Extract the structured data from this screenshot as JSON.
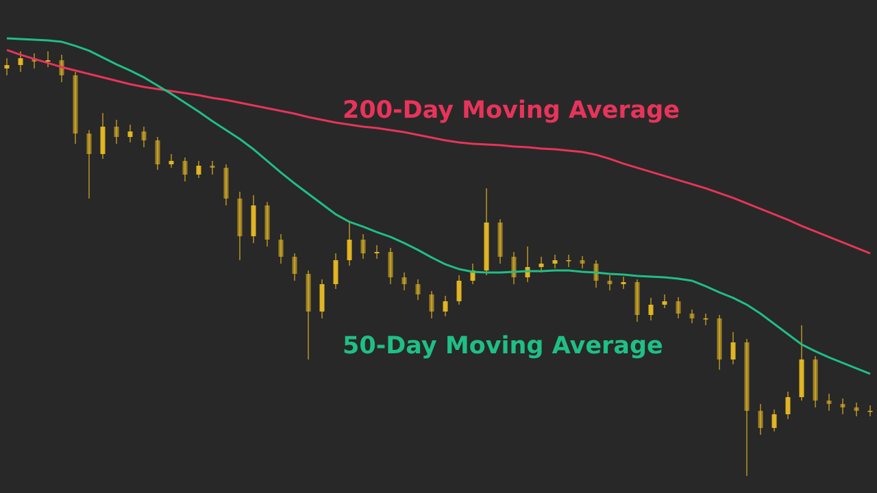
{
  "chart_data": {
    "type": "candlestick",
    "ylim": [
      0,
      720
    ],
    "color": "#e8b923",
    "open": [
      620,
      625,
      635,
      630,
      632,
      610,
      525,
      495,
      535,
      520,
      528,
      515,
      480,
      485,
      465,
      478,
      475,
      430,
      375,
      420,
      370,
      345,
      320,
      265,
      305,
      340,
      370,
      350,
      352,
      315,
      305,
      290,
      265,
      280,
      310,
      325,
      395,
      345,
      315,
      330,
      335,
      340,
      340,
      335,
      310,
      305,
      308,
      260,
      275,
      280,
      262,
      255,
      255,
      195,
      220,
      120,
      95,
      115,
      140,
      195,
      135,
      130,
      125,
      120
    ],
    "high": [
      635,
      645,
      642,
      645,
      640,
      615,
      530,
      555,
      545,
      538,
      535,
      520,
      495,
      490,
      485,
      485,
      480,
      440,
      435,
      425,
      378,
      350,
      325,
      312,
      350,
      395,
      378,
      362,
      358,
      322,
      312,
      295,
      288,
      318,
      335,
      445,
      400,
      352,
      360,
      345,
      348,
      348,
      346,
      340,
      318,
      316,
      312,
      285,
      290,
      286,
      268,
      262,
      260,
      235,
      225,
      130,
      122,
      148,
      245,
      200,
      145,
      138,
      132,
      128
    ],
    "low": [
      610,
      615,
      620,
      622,
      600,
      510,
      430,
      488,
      510,
      512,
      505,
      472,
      475,
      455,
      460,
      465,
      420,
      340,
      365,
      360,
      335,
      310,
      195,
      255,
      298,
      332,
      342,
      342,
      305,
      296,
      282,
      255,
      258,
      275,
      305,
      318,
      335,
      305,
      308,
      322,
      328,
      330,
      328,
      300,
      296,
      298,
      250,
      252,
      270,
      255,
      248,
      245,
      180,
      188,
      25,
      85,
      90,
      108,
      135,
      125,
      120,
      115,
      112,
      112
    ],
    "close": [
      625,
      635,
      630,
      632,
      610,
      525,
      495,
      535,
      520,
      528,
      515,
      480,
      485,
      465,
      478,
      475,
      430,
      375,
      420,
      370,
      345,
      320,
      265,
      305,
      340,
      370,
      350,
      352,
      315,
      305,
      290,
      265,
      280,
      310,
      325,
      395,
      345,
      315,
      330,
      335,
      340,
      340,
      335,
      310,
      305,
      308,
      260,
      275,
      280,
      262,
      255,
      255,
      195,
      220,
      120,
      95,
      115,
      140,
      195,
      135,
      130,
      125,
      120,
      120
    ],
    "series": [
      {
        "name": "200-Day Moving Average",
        "color": "#e8345a",
        "values": [
          647,
          640,
          634,
          628,
          622,
          617,
          612,
          607,
          602,
          597,
          593,
          590,
          587,
          584,
          581,
          577,
          574,
          570,
          566,
          562,
          558,
          554,
          549,
          545,
          541,
          538,
          535,
          533,
          530,
          527,
          523,
          519,
          515,
          512,
          510,
          509,
          508,
          506,
          505,
          503,
          502,
          500,
          498,
          494,
          488,
          481,
          475,
          469,
          463,
          457,
          451,
          445,
          438,
          431,
          423,
          415,
          407,
          399,
          390,
          382,
          374,
          366,
          358,
          350
        ]
      },
      {
        "name": "50-Day Moving Average",
        "color": "#1fbf86",
        "values": [
          664,
          663,
          662,
          661,
          659,
          653,
          646,
          636,
          626,
          617,
          607,
          595,
          583,
          570,
          557,
          543,
          530,
          517,
          502,
          485,
          468,
          452,
          437,
          422,
          407,
          396,
          389,
          381,
          374,
          365,
          355,
          344,
          334,
          327,
          323,
          322,
          322,
          323,
          324,
          324,
          325,
          325,
          323,
          322,
          320,
          319,
          317,
          316,
          315,
          313,
          310,
          302,
          293,
          285,
          275,
          262,
          247,
          232,
          217,
          207,
          198,
          190,
          182,
          174
        ]
      }
    ]
  }
}
